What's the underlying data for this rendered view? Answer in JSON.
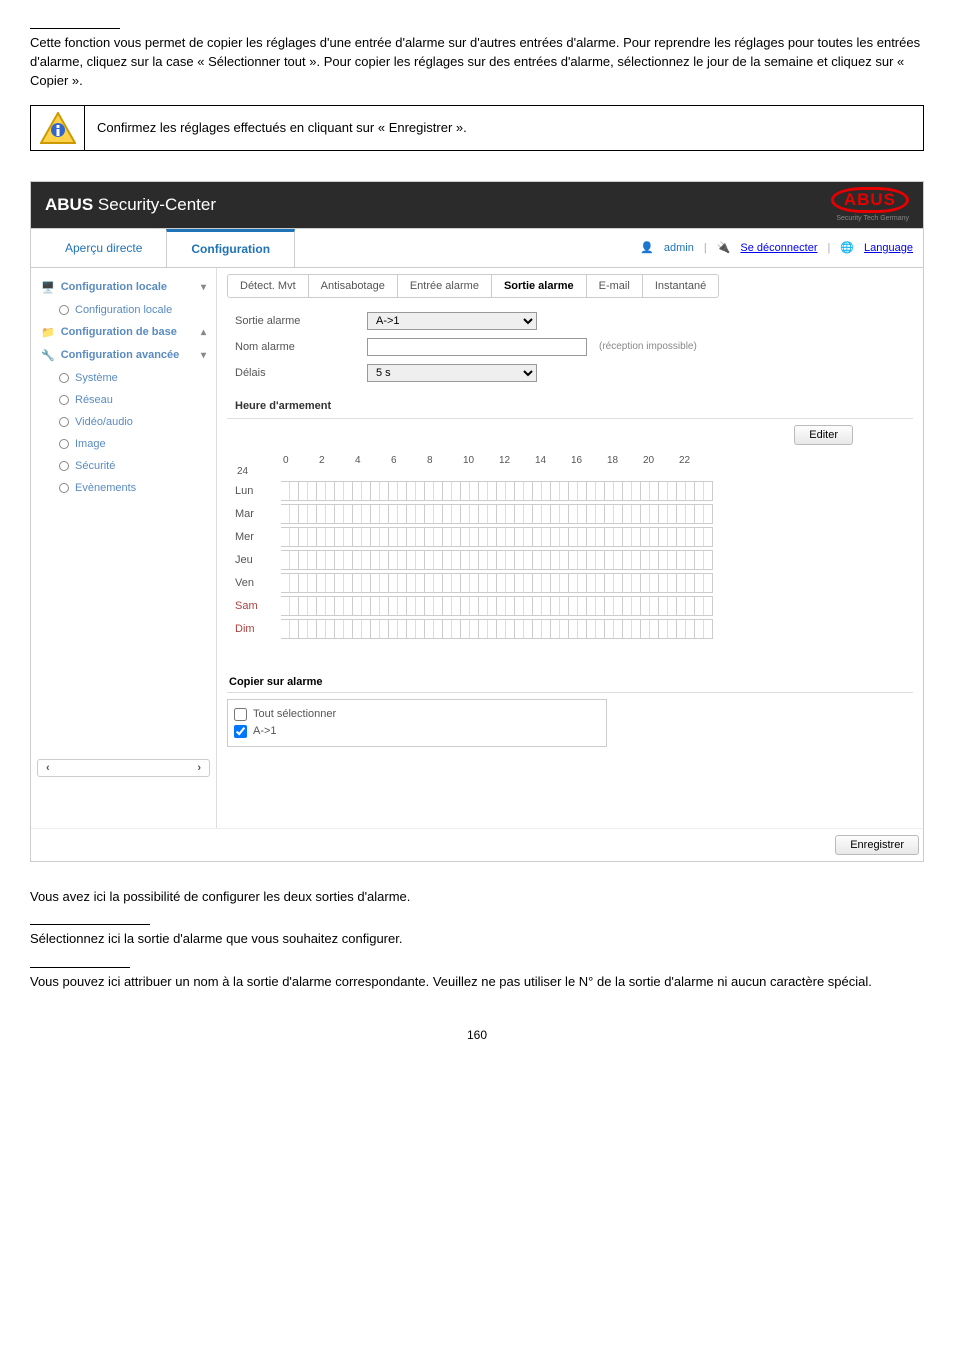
{
  "intro_underline_width": 90,
  "intro_para": "Cette fonction vous permet de copier les réglages d'une entrée d'alarme sur d'autres entrées d'alarme. Pour reprendre les réglages pour toutes les entrées d'alarme, cliquez sur la case « Sélectionner tout ». Pour copier les réglages sur des entrées d'alarme, sélectionnez le jour de la semaine et cliquez sur « Copier ».",
  "note_text": "Confirmez les réglages effectués en cliquant sur « Enregistrer ».",
  "app_title_bold": "ABUS",
  "app_title_rest": " Security-Center",
  "brand": "ABUS",
  "brand_sub": "Security Tech Germany",
  "top": {
    "tab1": "Aperçu directe",
    "tab2": "Configuration",
    "user": "admin",
    "logout": "Se déconnecter",
    "language": "Language"
  },
  "sidebar": {
    "cfg_locale": "Configuration locale",
    "cfg_locale_sub": "Configuration locale",
    "cfg_base": "Configuration de base",
    "cfg_adv": "Configuration avancée",
    "systeme": "Système",
    "reseau": "Réseau",
    "video": "Vidéo/audio",
    "image": "Image",
    "securite": "Sécurité",
    "evenements": "Evènements"
  },
  "inner_tabs": {
    "t1": "Détect. Mvt",
    "t2": "Antisabotage",
    "t3": "Entrée alarme",
    "t4": "Sortie alarme",
    "t5": "E-mail",
    "t6": "Instantané"
  },
  "form": {
    "sortie_label": "Sortie alarme",
    "sortie_value": "A->1",
    "nom_label": "Nom alarme",
    "nom_value": "",
    "nom_hint": "(réception impossible)",
    "delais_label": "Délais",
    "delais_value": "5 s"
  },
  "arm": {
    "title": "Heure d'armement",
    "edit": "Editer",
    "hours": [
      "0",
      "2",
      "4",
      "6",
      "8",
      "10",
      "12",
      "14",
      "16",
      "18",
      "20",
      "22",
      "24"
    ],
    "days": [
      "Lun",
      "Mar",
      "Mer",
      "Jeu",
      "Ven",
      "Sam",
      "Dim"
    ]
  },
  "copy": {
    "title": "Copier sur alarme",
    "all": "Tout sélectionner",
    "a1": "A->1"
  },
  "save": "Enregistrer",
  "outro1": "Vous avez ici la possibilité de configurer les deux sorties d'alarme.",
  "outro2": "Sélectionnez ici la sortie d'alarme que vous souhaitez configurer.",
  "outro3": "Vous pouvez ici attribuer un nom à la sortie d'alarme correspondante. Veuillez ne pas utiliser le N° de la sortie d'alarme ni aucun caractère spécial.",
  "page_num": "160",
  "colors": {
    "link": "#1f73b7",
    "brand": "#e60000"
  }
}
